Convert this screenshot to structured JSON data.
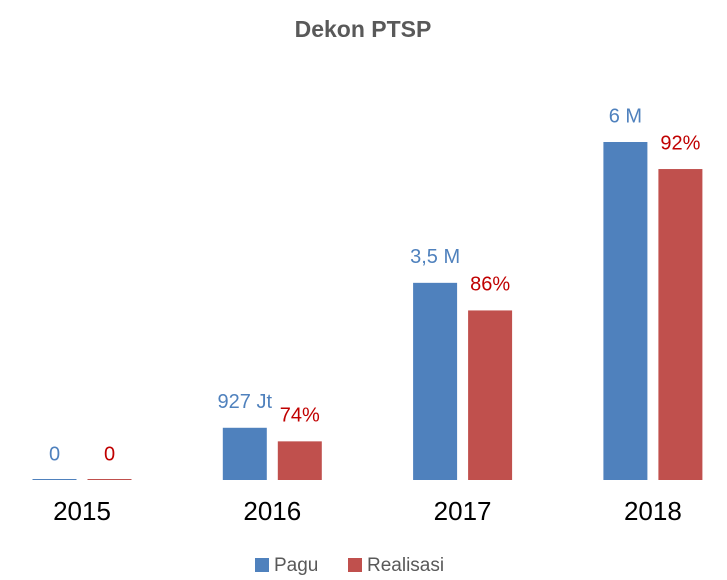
{
  "chart_data": {
    "type": "bar",
    "title": "Dekon PTSP",
    "categories": [
      "2015",
      "2016",
      "2017",
      "2018"
    ],
    "series": [
      {
        "name": "Pagu",
        "color": "#4f81bd",
        "values": [
          0,
          0.927,
          3.5,
          6
        ],
        "value_labels": [
          "0",
          "927 Jt",
          "3,5 M",
          "6 M"
        ]
      },
      {
        "name": "Realisasi",
        "color": "#c0504d",
        "values": [
          0,
          74,
          86,
          92
        ],
        "value_labels": [
          "0",
          "74%",
          "86%",
          "92%"
        ]
      }
    ]
  }
}
